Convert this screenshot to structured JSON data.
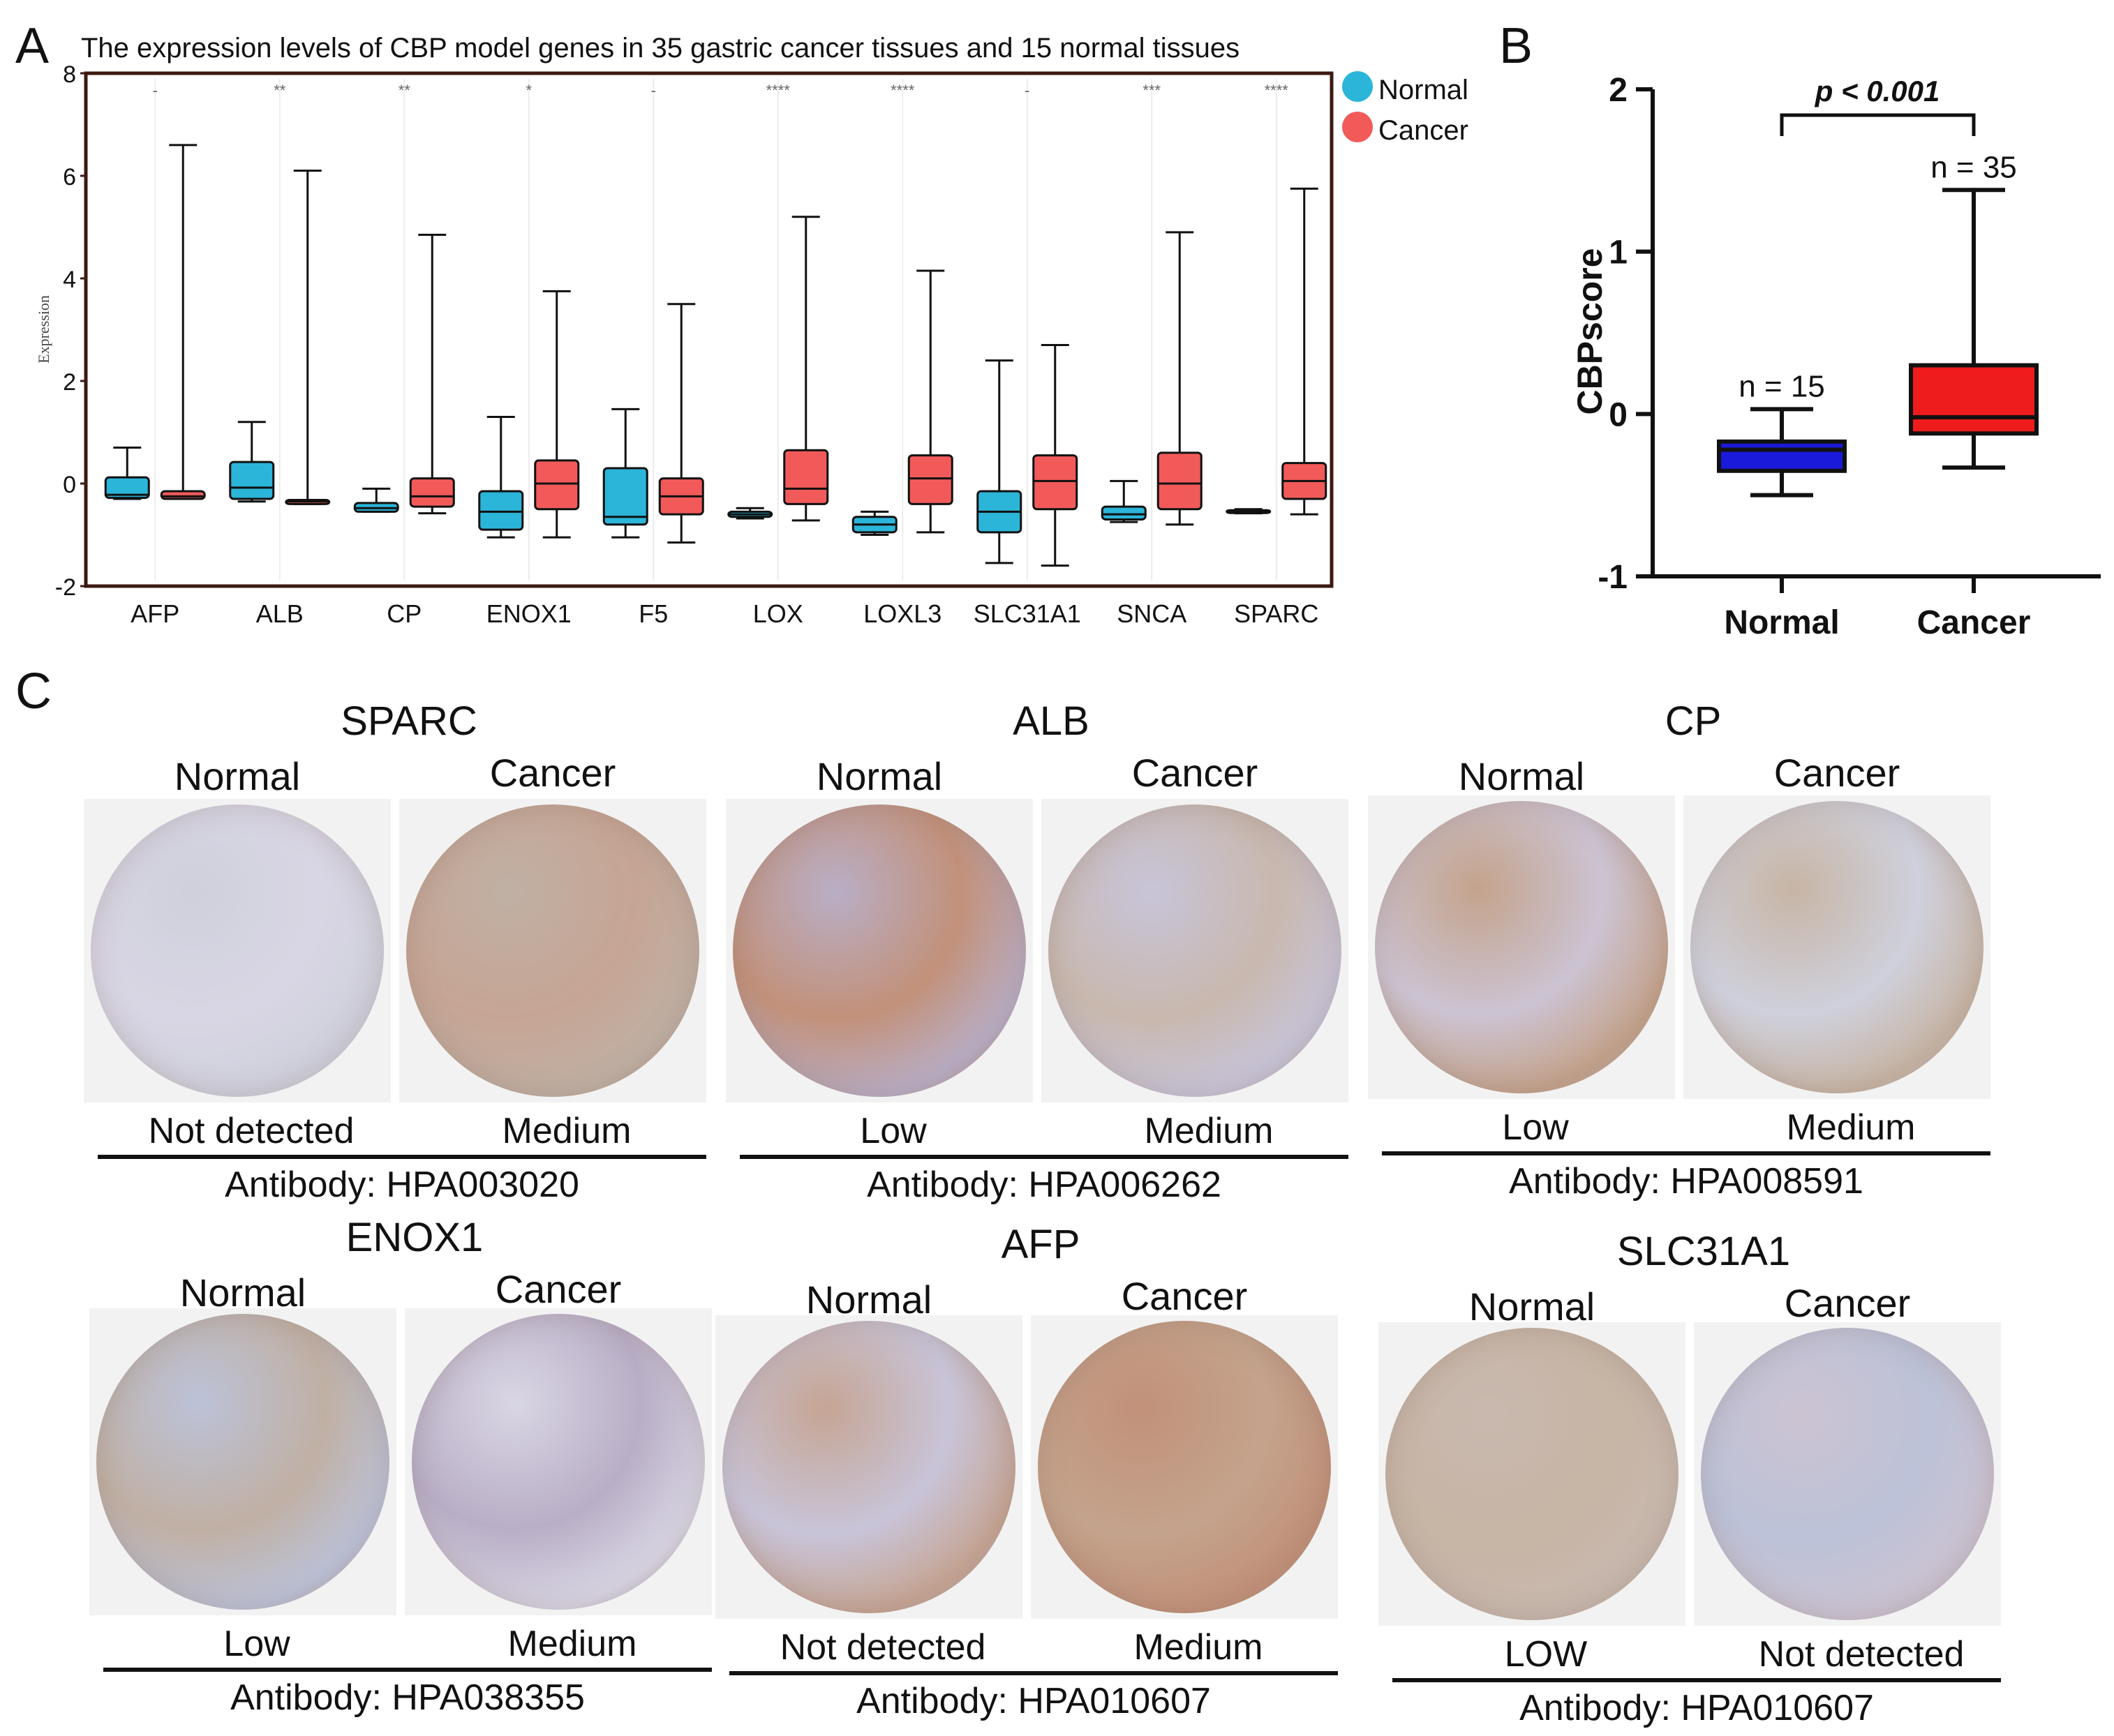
{
  "panels": {
    "a": "A",
    "b": "B",
    "c": "C"
  },
  "chart_data": [
    {
      "type": "box",
      "title": "The expression levels of CBP model genes in 35 gastric cancer tissues and 15 normal tissues",
      "ylabel": "Expression",
      "xlabel": "",
      "ylim": [
        -2,
        8
      ],
      "yticks": [
        "-2",
        "0",
        "2",
        "4",
        "6",
        "8"
      ],
      "ytick_values": [
        -2,
        0,
        2,
        4,
        6,
        8
      ],
      "legend": [
        {
          "name": "Normal",
          "color": "#2bb5d8"
        },
        {
          "name": "Cancer",
          "color": "#f25a5a"
        }
      ],
      "legend_position": "top-right, outside",
      "categories": [
        "AFP",
        "ALB",
        "CP",
        "ENOX1",
        "F5",
        "LOX",
        "LOXL3",
        "SLC31A1",
        "SNCA",
        "SPARC"
      ],
      "significance": [
        "-",
        "**",
        "**",
        "*",
        "-",
        "****",
        "****",
        "-",
        "***",
        "****"
      ],
      "series": [
        {
          "name": "Normal",
          "color": "#2bb5d8",
          "boxes": [
            {
              "min": -0.3,
              "q1": -0.28,
              "median": -0.22,
              "q3": 0.12,
              "max": 0.7
            },
            {
              "min": -0.35,
              "q1": -0.3,
              "median": -0.08,
              "q3": 0.42,
              "max": 1.2
            },
            {
              "min": -0.55,
              "q1": -0.55,
              "median": -0.48,
              "q3": -0.38,
              "max": -0.1
            },
            {
              "min": -1.05,
              "q1": -0.9,
              "median": -0.55,
              "q3": -0.15,
              "max": 1.3
            },
            {
              "min": -1.05,
              "q1": -0.8,
              "median": -0.65,
              "q3": 0.3,
              "max": 1.45
            },
            {
              "min": -0.68,
              "q1": -0.65,
              "median": -0.6,
              "q3": -0.55,
              "max": -0.48
            },
            {
              "min": -1.0,
              "q1": -0.95,
              "median": -0.8,
              "q3": -0.65,
              "max": -0.55
            },
            {
              "min": -1.55,
              "q1": -0.95,
              "median": -0.55,
              "q3": -0.15,
              "max": 2.4
            },
            {
              "min": -0.75,
              "q1": -0.7,
              "median": -0.6,
              "q3": -0.45,
              "max": 0.05
            },
            {
              "min": -0.58,
              "q1": -0.57,
              "median": -0.55,
              "q3": -0.52,
              "max": -0.5
            }
          ]
        },
        {
          "name": "Cancer",
          "color": "#f25a5a",
          "boxes": [
            {
              "min": -0.3,
              "q1": -0.3,
              "median": -0.25,
              "q3": -0.15,
              "max": 6.6
            },
            {
              "min": -0.4,
              "q1": -0.4,
              "median": -0.35,
              "q3": -0.32,
              "max": 6.1
            },
            {
              "min": -0.58,
              "q1": -0.45,
              "median": -0.25,
              "q3": 0.1,
              "max": 4.85
            },
            {
              "min": -1.05,
              "q1": -0.5,
              "median": 0.0,
              "q3": 0.45,
              "max": 3.75
            },
            {
              "min": -1.15,
              "q1": -0.6,
              "median": -0.25,
              "q3": 0.1,
              "max": 3.5
            },
            {
              "min": -0.72,
              "q1": -0.4,
              "median": -0.1,
              "q3": 0.65,
              "max": 5.2
            },
            {
              "min": -0.95,
              "q1": -0.4,
              "median": 0.1,
              "q3": 0.55,
              "max": 4.15
            },
            {
              "min": -1.6,
              "q1": -0.5,
              "median": 0.05,
              "q3": 0.55,
              "max": 2.7
            },
            {
              "min": -0.8,
              "q1": -0.5,
              "median": 0.0,
              "q3": 0.6,
              "max": 4.9
            },
            {
              "min": -0.6,
              "q1": -0.3,
              "median": 0.05,
              "q3": 0.4,
              "max": 5.75
            }
          ]
        }
      ]
    },
    {
      "type": "box",
      "ylabel": "CBPscore",
      "ylim": [
        -1,
        2
      ],
      "yticks": [
        "-1",
        "0",
        "1",
        "2"
      ],
      "ytick_values": [
        -1,
        0,
        1,
        2
      ],
      "categories": [
        "Normal",
        "Cancer"
      ],
      "n_labels": [
        "n = 15",
        "n = 35"
      ],
      "significance": "p < 0.001",
      "series": [
        {
          "name": "Normal",
          "color": "#1a1adb",
          "min": -0.5,
          "q1": -0.35,
          "median": -0.22,
          "q3": -0.17,
          "max": 0.03
        },
        {
          "name": "Cancer",
          "color": "#ee1c1c",
          "min": -0.33,
          "q1": -0.12,
          "median": -0.02,
          "q3": 0.3,
          "max": 1.38
        }
      ]
    }
  ],
  "ihc": [
    {
      "gene": "SPARC",
      "normal_label": "Normal",
      "cancer_label": "Cancer",
      "normal_level": "Not detected",
      "cancer_level": "Medium",
      "antibody": "Antibody: HPA003020"
    },
    {
      "gene": "ALB",
      "normal_label": "Normal",
      "cancer_label": "Cancer",
      "normal_level": "Low",
      "cancer_level": "Medium",
      "antibody": "Antibody: HPA006262"
    },
    {
      "gene": "CP",
      "normal_label": "Normal",
      "cancer_label": "Cancer",
      "normal_level": "Low",
      "cancer_level": "Medium",
      "antibody": "Antibody: HPA008591"
    },
    {
      "gene": "ENOX1",
      "normal_label": "Normal",
      "cancer_label": "Cancer",
      "normal_level": "Low",
      "cancer_level": "Medium",
      "antibody": "Antibody: HPA038355"
    },
    {
      "gene": "AFP",
      "normal_label": "Normal",
      "cancer_label": "Cancer",
      "normal_level": "Not detected",
      "cancer_level": "Medium",
      "antibody": "Antibody: HPA010607"
    },
    {
      "gene": "SLC31A1",
      "normal_label": "Normal",
      "cancer_label": "Cancer",
      "normal_level": "LOW",
      "cancer_level": "Not detected",
      "antibody": "Antibody: HPA010607"
    }
  ],
  "tissue_colors": [
    "#d9d6e4",
    "#c6a594",
    "#c2917a",
    "#c8b8ae",
    "#ccc3d2",
    "#cfd0dc",
    "#c0b0a4",
    "#b9aec6",
    "#c8c4d8",
    "#c4a38c",
    "#c7b5a5",
    "#bcc2d8"
  ]
}
